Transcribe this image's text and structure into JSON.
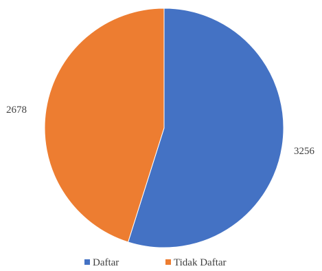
{
  "chart_data": {
    "type": "pie",
    "title": "",
    "labels": [
      "Daftar",
      "Tidak Daftar"
    ],
    "values": [
      3256,
      2678
    ],
    "colors": [
      "#4472C4",
      "#ED7D31"
    ],
    "start_angle_deg": 0,
    "direction": "clockwise",
    "legend": {
      "position": "bottom",
      "entries": [
        "Daftar",
        "Tidak Daftar"
      ]
    }
  }
}
